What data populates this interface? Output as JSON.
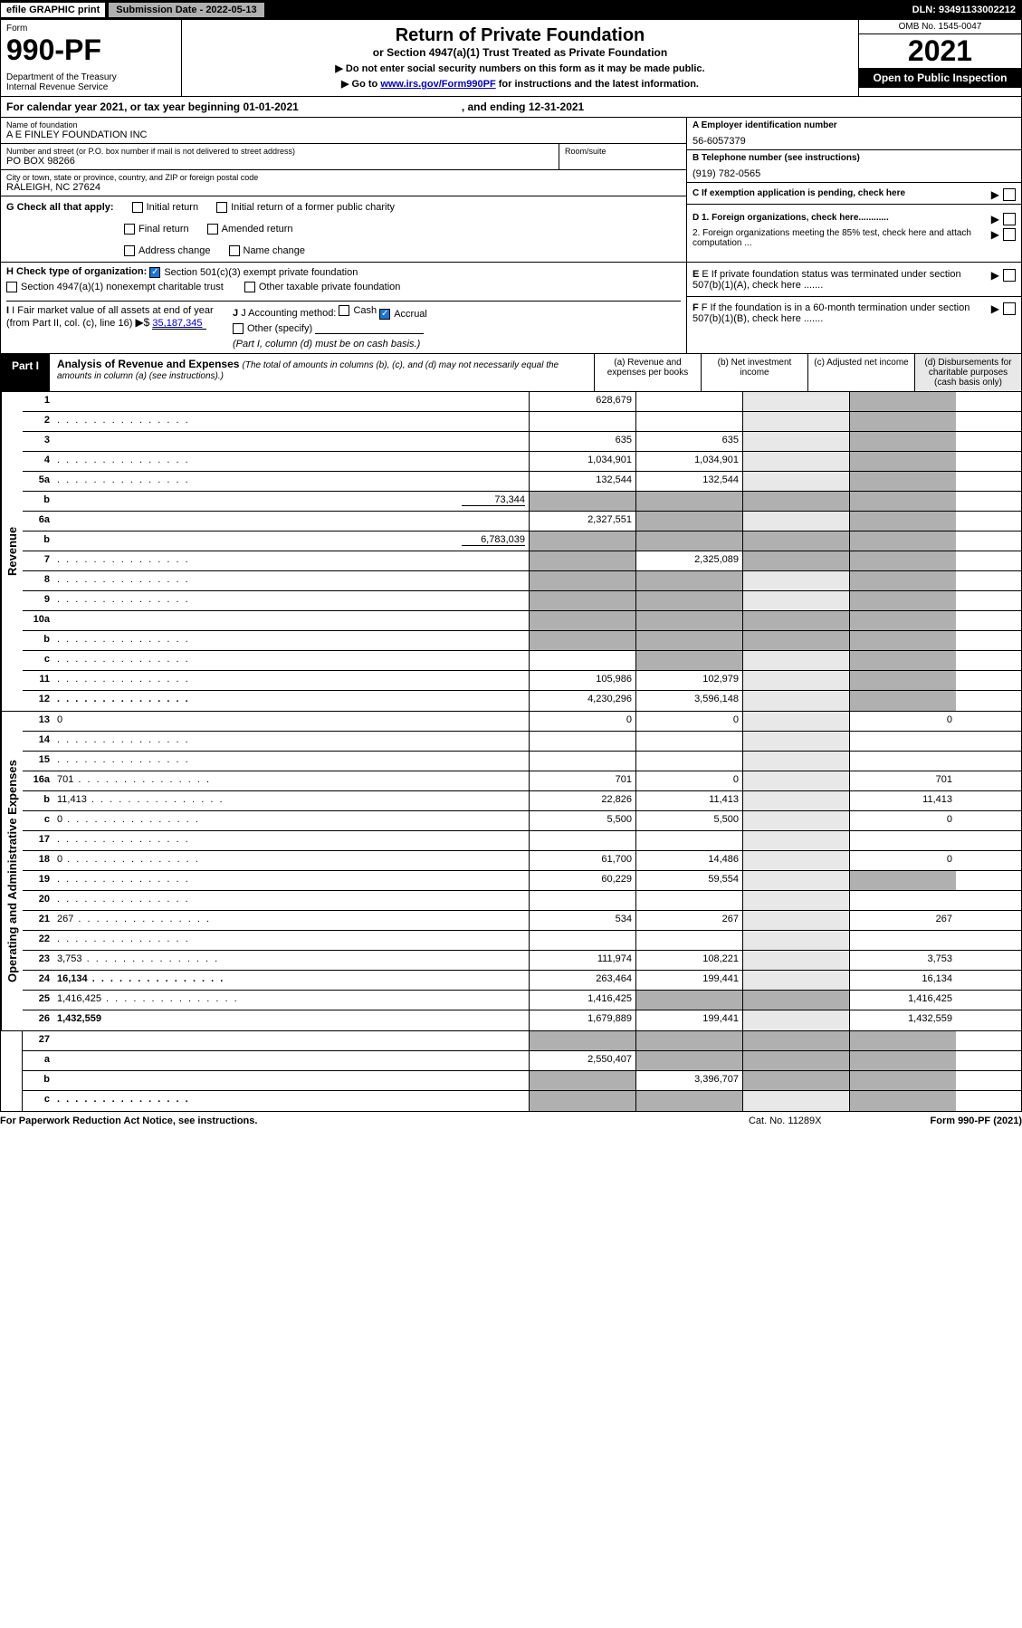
{
  "top": {
    "efile": "efile GRAPHIC print",
    "submission": "Submission Date - 2022-05-13",
    "dln": "DLN: 93491133002212"
  },
  "header": {
    "form": "Form",
    "number": "990-PF",
    "dept": "Department of the Treasury\nInternal Revenue Service",
    "title": "Return of Private Foundation",
    "subtitle": "or Section 4947(a)(1) Trust Treated as Private Foundation",
    "note1": "▶ Do not enter social security numbers on this form as it may be made public.",
    "note2_pre": "▶ Go to ",
    "note2_link": "www.irs.gov/Form990PF",
    "note2_post": " for instructions and the latest information.",
    "omb": "OMB No. 1545-0047",
    "year": "2021",
    "open": "Open to Public Inspection"
  },
  "calendar": {
    "text": "For calendar year 2021, or tax year beginning 01-01-2021",
    "ending": ", and ending 12-31-2021"
  },
  "foundation": {
    "name_lbl": "Name of foundation",
    "name": "A E FINLEY FOUNDATION INC",
    "addr_lbl": "Number and street (or P.O. box number if mail is not delivered to street address)",
    "addr": "PO BOX 98266",
    "room_lbl": "Room/suite",
    "city_lbl": "City or town, state or province, country, and ZIP or foreign postal code",
    "city": "RALEIGH, NC  27624",
    "ein_lbl": "A Employer identification number",
    "ein": "56-6057379",
    "phone_lbl": "B Telephone number (see instructions)",
    "phone": "(919) 782-0565",
    "c_lbl": "C If exemption application is pending, check here",
    "d1": "D 1. Foreign organizations, check here............",
    "d2": "2. Foreign organizations meeting the 85% test, check here and attach computation ...",
    "e": "E  If private foundation status was terminated under section 507(b)(1)(A), check here .......",
    "f": "F  If the foundation is in a 60-month termination under section 507(b)(1)(B), check here .......",
    "g_lbl": "G Check all that apply:",
    "g_opts": [
      "Initial return",
      "Final return",
      "Address change",
      "Initial return of a former public charity",
      "Amended return",
      "Name change"
    ],
    "h_lbl": "H Check type of organization:",
    "h1": "Section 501(c)(3) exempt private foundation",
    "h2": "Section 4947(a)(1) nonexempt charitable trust",
    "h3": "Other taxable private foundation",
    "i_lbl": "I Fair market value of all assets at end of year (from Part II, col. (c), line 16)",
    "i_val": "35,187,345",
    "j_lbl": "J Accounting method:",
    "j_opts": [
      "Cash",
      "Accrual"
    ],
    "j_other": "Other (specify)",
    "j_note": "(Part I, column (d) must be on cash basis.)"
  },
  "part1": {
    "label": "Part I",
    "title": "Analysis of Revenue and Expenses",
    "note": "(The total of amounts in columns (b), (c), and (d) may not necessarily equal the amounts in column (a) (see instructions).)",
    "cols": {
      "a": "(a)   Revenue and expenses per books",
      "b": "(b)   Net investment income",
      "c": "(c)   Adjusted net income",
      "d": "(d)  Disbursements for charitable purposes (cash basis only)"
    }
  },
  "sections": {
    "revenue": "Revenue",
    "expenses": "Operating and Administrative Expenses"
  },
  "rows": [
    {
      "n": "1",
      "d": "",
      "a": "628,679",
      "b": "",
      "c": "",
      "dg": true
    },
    {
      "n": "2",
      "d": "",
      "dots": true,
      "a": "",
      "b": "",
      "c": "",
      "dg": true
    },
    {
      "n": "3",
      "d": "",
      "a": "635",
      "b": "635",
      "c": "",
      "dg": true
    },
    {
      "n": "4",
      "d": "",
      "dots": true,
      "a": "1,034,901",
      "b": "1,034,901",
      "c": "",
      "dg": true
    },
    {
      "n": "5a",
      "d": "",
      "dots": true,
      "a": "132,544",
      "b": "132,544",
      "c": "",
      "dg": true
    },
    {
      "n": "b",
      "d": "",
      "extra": "73,344",
      "a": "",
      "b": "",
      "c": "",
      "ag": true,
      "bg": true,
      "cg": true,
      "dg": true
    },
    {
      "n": "6a",
      "d": "",
      "a": "2,327,551",
      "b": "",
      "c": "",
      "bg": true,
      "dg": true
    },
    {
      "n": "b",
      "d": "",
      "extra": "6,783,039",
      "a": "",
      "b": "",
      "c": "",
      "ag": true,
      "bg": true,
      "cg": true,
      "dg": true
    },
    {
      "n": "7",
      "d": "",
      "dots": true,
      "a": "",
      "b": "2,325,089",
      "c": "",
      "ag": true,
      "cg": true,
      "dg": true
    },
    {
      "n": "8",
      "d": "",
      "dots": true,
      "a": "",
      "b": "",
      "c": "",
      "ag": true,
      "bg": true,
      "dg": true
    },
    {
      "n": "9",
      "d": "",
      "dots": true,
      "a": "",
      "b": "",
      "c": "",
      "ag": true,
      "bg": true,
      "dg": true
    },
    {
      "n": "10a",
      "d": "",
      "a": "",
      "b": "",
      "c": "",
      "ag": true,
      "bg": true,
      "cg": true,
      "dg": true
    },
    {
      "n": "b",
      "d": "",
      "dots": true,
      "a": "",
      "b": "",
      "c": "",
      "ag": true,
      "bg": true,
      "cg": true,
      "dg": true
    },
    {
      "n": "c",
      "d": "",
      "dots": true,
      "a": "",
      "b": "",
      "c": "",
      "bg": true,
      "dg": true
    },
    {
      "n": "11",
      "d": "",
      "dots": true,
      "a": "105,986",
      "b": "102,979",
      "c": "",
      "dg": true
    },
    {
      "n": "12",
      "d": "",
      "dots": true,
      "bold": true,
      "a": "4,230,296",
      "b": "3,596,148",
      "c": "",
      "dg": true
    }
  ],
  "exp_rows": [
    {
      "n": "13",
      "d": "0",
      "a": "0",
      "b": "0",
      "c": ""
    },
    {
      "n": "14",
      "d": "",
      "dots": true,
      "a": "",
      "b": "",
      "c": ""
    },
    {
      "n": "15",
      "d": "",
      "dots": true,
      "a": "",
      "b": "",
      "c": ""
    },
    {
      "n": "16a",
      "d": "701",
      "dots": true,
      "a": "701",
      "b": "0",
      "c": ""
    },
    {
      "n": "b",
      "d": "11,413",
      "dots": true,
      "a": "22,826",
      "b": "11,413",
      "c": ""
    },
    {
      "n": "c",
      "d": "0",
      "dots": true,
      "a": "5,500",
      "b": "5,500",
      "c": ""
    },
    {
      "n": "17",
      "d": "",
      "dots": true,
      "a": "",
      "b": "",
      "c": ""
    },
    {
      "n": "18",
      "d": "0",
      "dots": true,
      "a": "61,700",
      "b": "14,486",
      "c": ""
    },
    {
      "n": "19",
      "d": "",
      "dots": true,
      "a": "60,229",
      "b": "59,554",
      "c": "",
      "dg": true
    },
    {
      "n": "20",
      "d": "",
      "dots": true,
      "a": "",
      "b": "",
      "c": ""
    },
    {
      "n": "21",
      "d": "267",
      "dots": true,
      "a": "534",
      "b": "267",
      "c": ""
    },
    {
      "n": "22",
      "d": "",
      "dots": true,
      "a": "",
      "b": "",
      "c": ""
    },
    {
      "n": "23",
      "d": "3,753",
      "dots": true,
      "a": "111,974",
      "b": "108,221",
      "c": ""
    },
    {
      "n": "24",
      "d": "16,134",
      "dots": true,
      "bold": true,
      "a": "263,464",
      "b": "199,441",
      "c": ""
    },
    {
      "n": "25",
      "d": "1,416,425",
      "dots": true,
      "a": "1,416,425",
      "b": "",
      "c": "",
      "bg": true,
      "cg": true
    },
    {
      "n": "26",
      "d": "1,432,559",
      "bold": true,
      "a": "1,679,889",
      "b": "199,441",
      "c": ""
    }
  ],
  "net_rows": [
    {
      "n": "27",
      "d": "",
      "a": "",
      "b": "",
      "c": "",
      "ag": true,
      "bg": true,
      "cg": true,
      "dg": true
    },
    {
      "n": "a",
      "d": "",
      "bold": true,
      "a": "2,550,407",
      "b": "",
      "c": "",
      "bg": true,
      "cg": true,
      "dg": true
    },
    {
      "n": "b",
      "d": "",
      "bold": true,
      "a": "",
      "b": "3,396,707",
      "c": "",
      "ag": true,
      "cg": true,
      "dg": true
    },
    {
      "n": "c",
      "d": "",
      "dots": true,
      "bold": true,
      "a": "",
      "b": "",
      "c": "",
      "ag": true,
      "bg": true,
      "dg": true
    }
  ],
  "footer": {
    "left": "For Paperwork Reduction Act Notice, see instructions.",
    "mid": "Cat. No. 11289X",
    "right": "Form 990-PF (2021)"
  },
  "colors": {
    "black": "#000000",
    "gray": "#b0b0b0",
    "lightgray": "#e8e8e8",
    "blue": "#1976d2",
    "link": "#0000cc"
  }
}
